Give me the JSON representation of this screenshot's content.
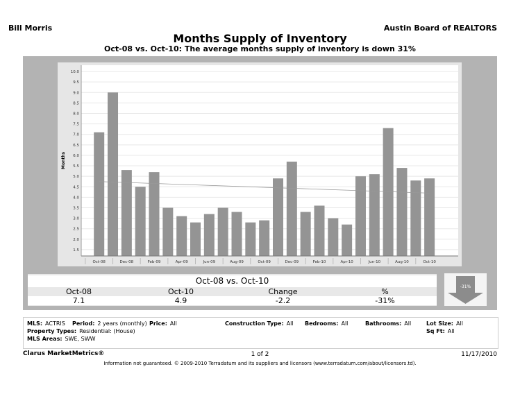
{
  "header": {
    "agent": "Bill Morris",
    "board": "Austin Board of REALTORS"
  },
  "title": "Months Supply of Inventory",
  "subtitle": "Oct-08 vs. Oct-10:  The average months supply of inventory is down 31%",
  "chart_data": {
    "type": "bar",
    "ylabel": "Months",
    "ylim": [
      1.2,
      10.3
    ],
    "yticks": [
      "1.5",
      "2.0",
      "2.5",
      "3.0",
      "3.5",
      "4.0",
      "4.5",
      "5.0",
      "5.5",
      "6.0",
      "6.5",
      "7.0",
      "7.5",
      "8.0",
      "8.5",
      "9.0",
      "9.5",
      "10.0"
    ],
    "categories": [
      "Oct-08",
      "Nov-08",
      "Dec-08",
      "Jan-09",
      "Feb-09",
      "Mar-09",
      "Apr-09",
      "May-09",
      "Jun-09",
      "Jul-09",
      "Aug-09",
      "Sep-09",
      "Oct-09",
      "Nov-09",
      "Dec-09",
      "Jan-10",
      "Feb-10",
      "Mar-10",
      "Apr-10",
      "May-10",
      "Jun-10",
      "Jul-10",
      "Aug-10",
      "Sep-10",
      "Oct-10"
    ],
    "xtick_labels": [
      "Oct-08",
      "Dec-08",
      "Feb-09",
      "Apr-09",
      "Jun-09",
      "Aug-09",
      "Oct-09",
      "Dec-09",
      "Feb-10",
      "Apr-10",
      "Jun-10",
      "Aug-10",
      "Oct-10"
    ],
    "values": [
      7.1,
      9.0,
      5.3,
      4.5,
      5.2,
      3.5,
      3.1,
      2.8,
      3.2,
      3.5,
      3.3,
      2.8,
      2.9,
      4.9,
      5.7,
      3.3,
      3.6,
      3.0,
      2.7,
      5.0,
      5.1,
      7.3,
      5.4,
      4.8,
      4.9
    ],
    "trendline": {
      "start": 4.75,
      "end": 4.2
    },
    "grid": true,
    "colors": {
      "bar": "#949494",
      "trend": "#999999",
      "grid": "#e8e8e8"
    }
  },
  "summary": {
    "heading": "Oct-08 vs. Oct-10",
    "columns": [
      "Oct-08",
      "Oct-10",
      "Change",
      "%"
    ],
    "values": [
      "7.1",
      "4.9",
      "-2.2",
      "-31%"
    ],
    "arrow_label": "-31%",
    "arrow_icon": "down-arrow"
  },
  "filters": {
    "mls": {
      "label": "MLS:",
      "value": "ACTRIS"
    },
    "period": {
      "label": "Period:",
      "value": "2 years (monthly)"
    },
    "price": {
      "label": "Price:",
      "value": "All"
    },
    "construction": {
      "label": "Construction Type:",
      "value": "All"
    },
    "bedrooms": {
      "label": "Bedrooms:",
      "value": "All"
    },
    "bathrooms": {
      "label": "Bathrooms:",
      "value": "All"
    },
    "lot_size": {
      "label": "Lot Size:",
      "value": "All"
    },
    "property_types": {
      "label": "Property Types:",
      "value": "Residential: (House)"
    },
    "sqft": {
      "label": "Sq Ft:",
      "value": "All"
    },
    "mls_areas": {
      "label": "MLS Areas:",
      "value": "SWE, SWW"
    }
  },
  "footer": {
    "brand": "Clarus MarketMetrics®",
    "page": "1 of 2",
    "date": "11/17/2010",
    "disclaimer": "Information not guaranteed.  © 2009-2010 Terradatum and its suppliers and licensors (www.terradatum.com/about/licensors.td)."
  }
}
